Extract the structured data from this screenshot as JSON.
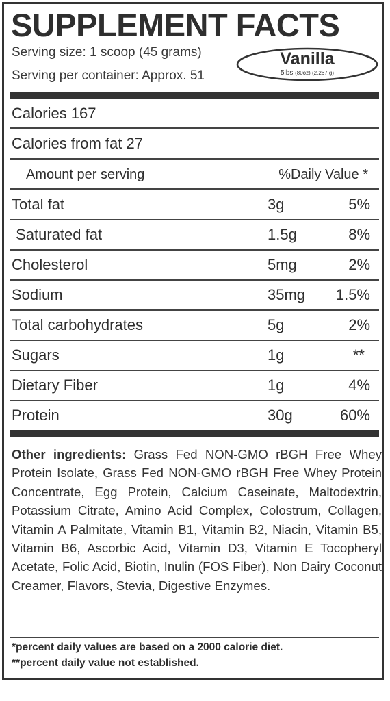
{
  "title": "SUPPLEMENT FACTS",
  "serving_size": "Serving size: 1 scoop (45 grams)",
  "servings_per_container": "Serving per container: Approx. 51",
  "flavor": "Vanilla",
  "weight_main": "5lbs",
  "weight_detail": "(80oz) (2,267 g)",
  "calories": "Calories 167",
  "calories_from_fat": "Calories from fat 27",
  "header": {
    "amount": "Amount per serving",
    "daily_value": "%Daily Value *"
  },
  "nutrients": [
    {
      "name": "Total fat",
      "amount": "3g",
      "dv": "5%"
    },
    {
      "name": " Saturated fat",
      "amount": "1.5g",
      "dv": "8%"
    },
    {
      "name": "Cholesterol",
      "amount": "5mg",
      "dv": "2%"
    },
    {
      "name": "Sodium",
      "amount": "35mg",
      "dv": "1.5%"
    },
    {
      "name": "Total carbohydrates",
      "amount": "5g",
      "dv": "2%"
    },
    {
      "name": "Sugars",
      "amount": "1g",
      "dv": "**"
    },
    {
      "name": "Dietary Fiber",
      "amount": "1g",
      "dv": "4%"
    },
    {
      "name": "Protein",
      "amount": "30g",
      "dv": "60%"
    }
  ],
  "ingredients_label": "Other ingredients:",
  "ingredients_text": "Grass Fed NON-GMO rBGH Free Whey Protein Isolate, Grass Fed NON-GMO rBGH Free Whey Protein Concentrate, Egg Protein, Calcium Caseinate, Maltodextrin, Potassium Citrate, Amino Acid Complex, Colostrum, Collagen, Vitamin A Palmitate, Vitamin B1, Vitamin B2, Niacin, Vitamin B5, Vitamin B6, Ascorbic Acid, Vitamin D3, Vitamin E Tocopheryl Acetate, Folic Acid, Biotin,  Inulin (FOS Fiber), Non Dairy Coconut Creamer,  Flavors, Stevia, Digestive Enzymes.",
  "footnote_1": "*percent daily values are based on a 2000 calorie diet.",
  "footnote_2": "**percent daily value not established."
}
